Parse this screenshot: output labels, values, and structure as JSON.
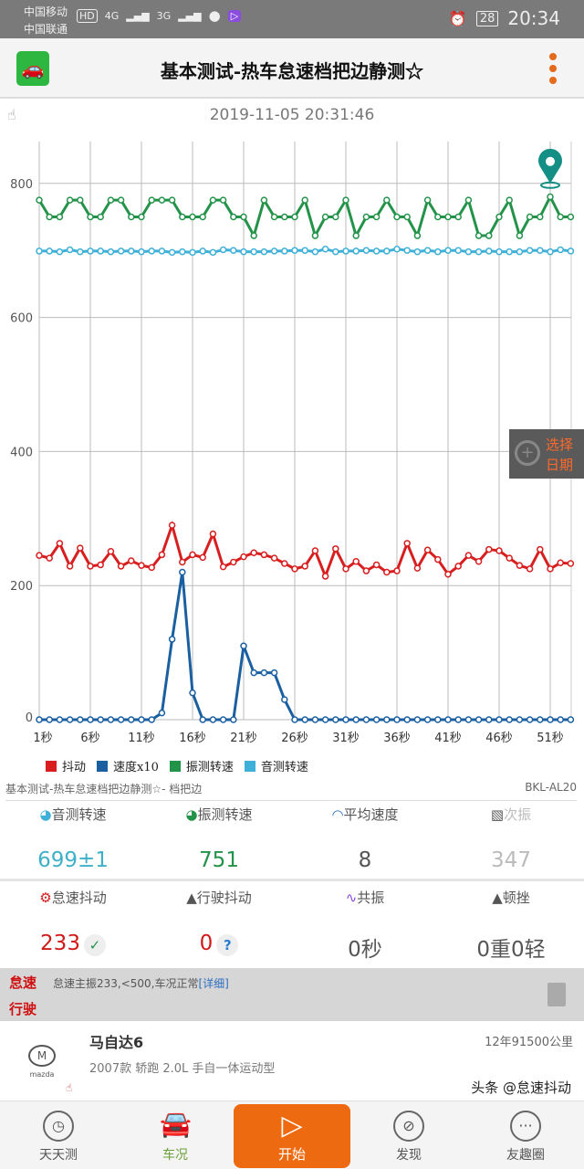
{
  "status": {
    "carrier1": "中国移动",
    "carrier2": "中国联通",
    "hd": "HD",
    "net1": "4G",
    "net2": "3G",
    "battery": "28",
    "time": "20:34"
  },
  "header": {
    "title": "基本测试-热车怠速档把边静测☆"
  },
  "datetime": "2019-11-05 20:31:46",
  "date_button": {
    "line1": "选择",
    "line2": "日期"
  },
  "chart_data": {
    "type": "line",
    "x": [
      "1秒",
      "2秒",
      "3秒",
      "4秒",
      "5秒",
      "6秒",
      "7秒",
      "8秒",
      "9秒",
      "10秒",
      "11秒",
      "12秒",
      "13秒",
      "14秒",
      "15秒",
      "16秒",
      "17秒",
      "18秒",
      "19秒",
      "20秒",
      "21秒",
      "22秒",
      "23秒",
      "24秒",
      "25秒",
      "26秒",
      "27秒",
      "28秒",
      "29秒",
      "30秒",
      "31秒",
      "32秒",
      "33秒",
      "34秒",
      "35秒",
      "36秒",
      "37秒",
      "38秒",
      "39秒",
      "40秒",
      "41秒",
      "42秒",
      "43秒",
      "44秒",
      "45秒",
      "46秒",
      "47秒",
      "48秒",
      "49秒",
      "50秒",
      "51秒",
      "52秒",
      "53秒"
    ],
    "xticks": [
      "1秒",
      "6秒",
      "11秒",
      "16秒",
      "21秒",
      "26秒",
      "31秒",
      "36秒",
      "41秒",
      "46秒",
      "51秒"
    ],
    "yticks": [
      0,
      200,
      400,
      600,
      800
    ],
    "ylim": [
      0,
      860
    ],
    "grid": true,
    "legend": "bottom",
    "series": [
      {
        "name": "抖动",
        "color": "#d81e1e",
        "values": [
          245,
          241,
          263,
          229,
          256,
          229,
          231,
          251,
          229,
          237,
          230,
          227,
          246,
          290,
          235,
          246,
          242,
          277,
          228,
          235,
          243,
          249,
          246,
          241,
          233,
          225,
          229,
          252,
          214,
          255,
          225,
          236,
          222,
          231,
          220,
          222,
          263,
          226,
          253,
          239,
          217,
          229,
          245,
          236,
          254,
          252,
          241,
          230,
          225,
          254,
          225,
          234,
          233
        ]
      },
      {
        "name": "速度x10",
        "color": "#1a5fa0",
        "values": [
          0,
          0,
          0,
          0,
          0,
          0,
          0,
          0,
          0,
          0,
          0,
          0,
          10,
          120,
          220,
          40,
          0,
          0,
          0,
          0,
          110,
          70,
          70,
          70,
          30,
          0,
          0,
          0,
          0,
          0,
          0,
          0,
          0,
          0,
          0,
          0,
          0,
          0,
          0,
          0,
          0,
          0,
          0,
          0,
          0,
          0,
          0,
          0,
          0,
          0,
          0,
          0,
          0
        ]
      },
      {
        "name": "振测转速",
        "color": "#23934a",
        "values": [
          775,
          750,
          750,
          775,
          775,
          750,
          750,
          775,
          775,
          750,
          750,
          775,
          775,
          775,
          750,
          750,
          750,
          775,
          775,
          750,
          750,
          722,
          775,
          750,
          750,
          750,
          775,
          722,
          750,
          750,
          775,
          722,
          750,
          750,
          775,
          750,
          750,
          722,
          775,
          750,
          750,
          750,
          775,
          722,
          722,
          750,
          775,
          722,
          750,
          750,
          780,
          750,
          750
        ]
      },
      {
        "name": "音测转速",
        "color": "#3fb0d8",
        "values": [
          699,
          699,
          698,
          701,
          698,
          699,
          699,
          698,
          699,
          699,
          698,
          699,
          699,
          697,
          698,
          697,
          699,
          697,
          701,
          700,
          698,
          698,
          698,
          699,
          699,
          700,
          700,
          698,
          702,
          698,
          699,
          699,
          700,
          699,
          699,
          702,
          700,
          698,
          700,
          698,
          700,
          700,
          698,
          698,
          699,
          698,
          698,
          698,
          700,
          700,
          698,
          701,
          699
        ]
      }
    ]
  },
  "subtitle": {
    "left": "基本测试-热车怠速档把边静测☆- 档把边",
    "right": "BKL-AL20"
  },
  "stats_row1": [
    {
      "label": "音测转速",
      "value": "699±1",
      "color": "#3fb0c8",
      "icon": "gauge-icon"
    },
    {
      "label": "振测转速",
      "value": "751",
      "color": "#23934a",
      "icon": "gauge-icon"
    },
    {
      "label": "平均速度",
      "value": "8",
      "color": "#555",
      "icon": "speedometer-icon"
    },
    {
      "label": "次振",
      "value": "347",
      "color": "#bbb",
      "icon": "waveform-icon"
    }
  ],
  "stats_row2": [
    {
      "label": "怠速抖动",
      "value": "233",
      "color": "#d01a1a",
      "badge": "✓",
      "icon": "engine-icon"
    },
    {
      "label": "行驶抖动",
      "value": "0",
      "color": "#d01a1a",
      "badge": "?",
      "icon": "road-icon"
    },
    {
      "label": "共振",
      "value": "0秒",
      "color": "#555",
      "icon": "pulse-icon"
    },
    {
      "label": "顿挫",
      "value": "0重0轻",
      "color": "#555",
      "icon": "triangle-icon"
    }
  ],
  "notice": {
    "idle_label": "怠速",
    "drive_label": "行驶",
    "message": "怠速主振233,<500,车况正常",
    "detail_link": "[详细]"
  },
  "car": {
    "brand": "mazda",
    "name": "马自达6",
    "model": "2007款 轿跑 2.0L 手自一体运动型",
    "mileage": "12年91500公里"
  },
  "nav": [
    {
      "label": "天天测"
    },
    {
      "label": "车况"
    },
    {
      "label": "开始"
    },
    {
      "label": "发现"
    },
    {
      "label": "友趣圈"
    }
  ],
  "watermark": "头条 @怠速抖动"
}
